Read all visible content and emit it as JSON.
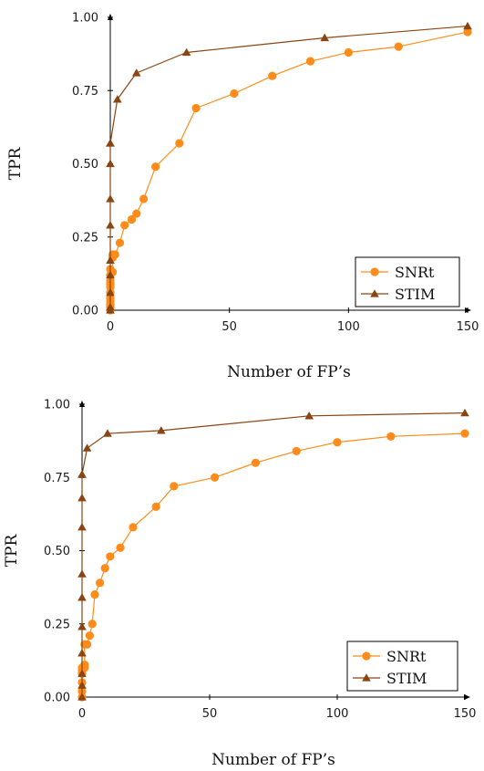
{
  "chart_data": [
    {
      "type": "line",
      "xlabel": "Number of FP’s",
      "ylabel": "TPR",
      "xlim": [
        0,
        150
      ],
      "ylim": [
        0,
        1
      ],
      "xticks": [
        0,
        50,
        100,
        150
      ],
      "yticks": [
        0.0,
        0.25,
        0.5,
        0.75,
        1.0
      ],
      "ytick_labels": [
        "0.00",
        "0.25",
        "0.50",
        "0.75",
        "1.00"
      ],
      "grid": false,
      "legend_position": "bottom-right",
      "series": [
        {
          "name": "SNRt",
          "color": "#ff8c1a",
          "marker": "circle",
          "x": [
            0,
            0,
            0,
            0,
            0,
            0,
            0,
            0,
            0,
            0,
            0,
            1,
            1,
            1,
            2,
            4,
            6,
            9,
            11,
            14,
            19,
            29,
            36,
            52,
            68,
            84,
            100,
            121,
            150
          ],
          "y": [
            0.0,
            0.01,
            0.02,
            0.03,
            0.04,
            0.06,
            0.08,
            0.09,
            0.1,
            0.12,
            0.14,
            0.13,
            0.18,
            0.19,
            0.19,
            0.23,
            0.29,
            0.31,
            0.33,
            0.38,
            0.49,
            0.57,
            0.69,
            0.74,
            0.8,
            0.85,
            0.88,
            0.9,
            0.95
          ]
        },
        {
          "name": "STIM",
          "color": "#8b4513",
          "marker": "triangle",
          "x": [
            0,
            0,
            0,
            0,
            0,
            0,
            0,
            0,
            0,
            0,
            3,
            11,
            32,
            90,
            150
          ],
          "y": [
            0.0,
            0.01,
            0.06,
            0.12,
            0.17,
            0.29,
            0.38,
            0.5,
            0.57,
            0.57,
            0.72,
            0.81,
            0.88,
            0.93,
            0.97
          ]
        }
      ]
    },
    {
      "type": "line",
      "xlabel": "Number of FP’s",
      "ylabel": "TPR",
      "xlim": [
        0,
        150
      ],
      "ylim": [
        0,
        1
      ],
      "xticks": [
        0,
        50,
        100,
        150
      ],
      "yticks": [
        0.0,
        0.25,
        0.5,
        0.75,
        1.0
      ],
      "ytick_labels": [
        "0.00",
        "0.25",
        "0.50",
        "0.75",
        "1.00"
      ],
      "grid": false,
      "legend_position": "bottom-right",
      "series": [
        {
          "name": "SNRt",
          "color": "#ff8c1a",
          "marker": "circle",
          "x": [
            0,
            0,
            0,
            0,
            0,
            0,
            1,
            1,
            1,
            1,
            2,
            3,
            4,
            5,
            7,
            9,
            11,
            15,
            20,
            29,
            36,
            52,
            68,
            84,
            100,
            121,
            150
          ],
          "y": [
            0.0,
            0.02,
            0.05,
            0.08,
            0.09,
            0.1,
            0.1,
            0.11,
            0.11,
            0.18,
            0.18,
            0.21,
            0.25,
            0.35,
            0.39,
            0.44,
            0.48,
            0.51,
            0.58,
            0.65,
            0.72,
            0.75,
            0.8,
            0.84,
            0.87,
            0.89,
            0.9
          ]
        },
        {
          "name": "STIM",
          "color": "#8b4513",
          "marker": "triangle",
          "x": [
            0,
            0,
            0,
            0,
            0,
            0,
            0,
            0,
            0,
            0,
            0,
            2,
            10,
            31,
            89,
            150
          ],
          "y": [
            0.0,
            0.04,
            0.08,
            0.15,
            0.24,
            0.34,
            0.42,
            0.58,
            0.68,
            0.76,
            0.76,
            0.85,
            0.9,
            0.91,
            0.96,
            0.97
          ]
        }
      ]
    }
  ]
}
